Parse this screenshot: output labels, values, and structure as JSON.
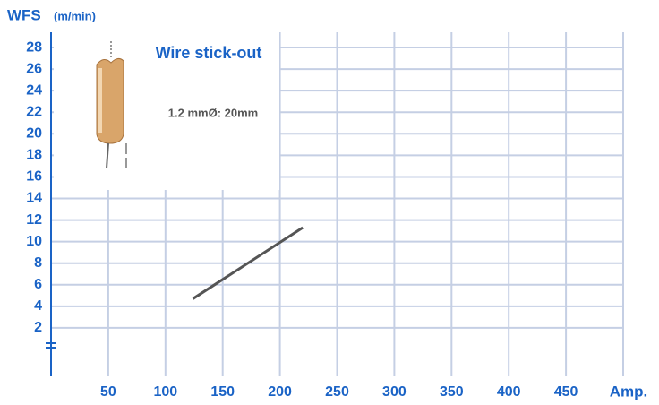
{
  "chart_data": {
    "type": "line",
    "ylabel": "WFS",
    "yunit": "(m/min)",
    "xlabel": "Amp.",
    "annotation_title": "Wire stick-out",
    "annotation_text": "1.2 mmØ: 20mm",
    "x": [
      124,
      220
    ],
    "series": [
      {
        "color": "#555555",
        "values": [
          4.7,
          11.3
        ]
      }
    ],
    "xlim": [
      0,
      500
    ],
    "ylim": [
      0,
      29
    ],
    "xticks": [
      50,
      100,
      150,
      200,
      250,
      300,
      350,
      400,
      450
    ],
    "yticks": [
      2,
      4,
      6,
      8,
      10,
      12,
      14,
      16,
      18,
      20,
      22,
      24,
      26,
      28
    ],
    "grid": true,
    "grid_color": "#c5cfe4",
    "axis_color": "#1a63c6"
  }
}
